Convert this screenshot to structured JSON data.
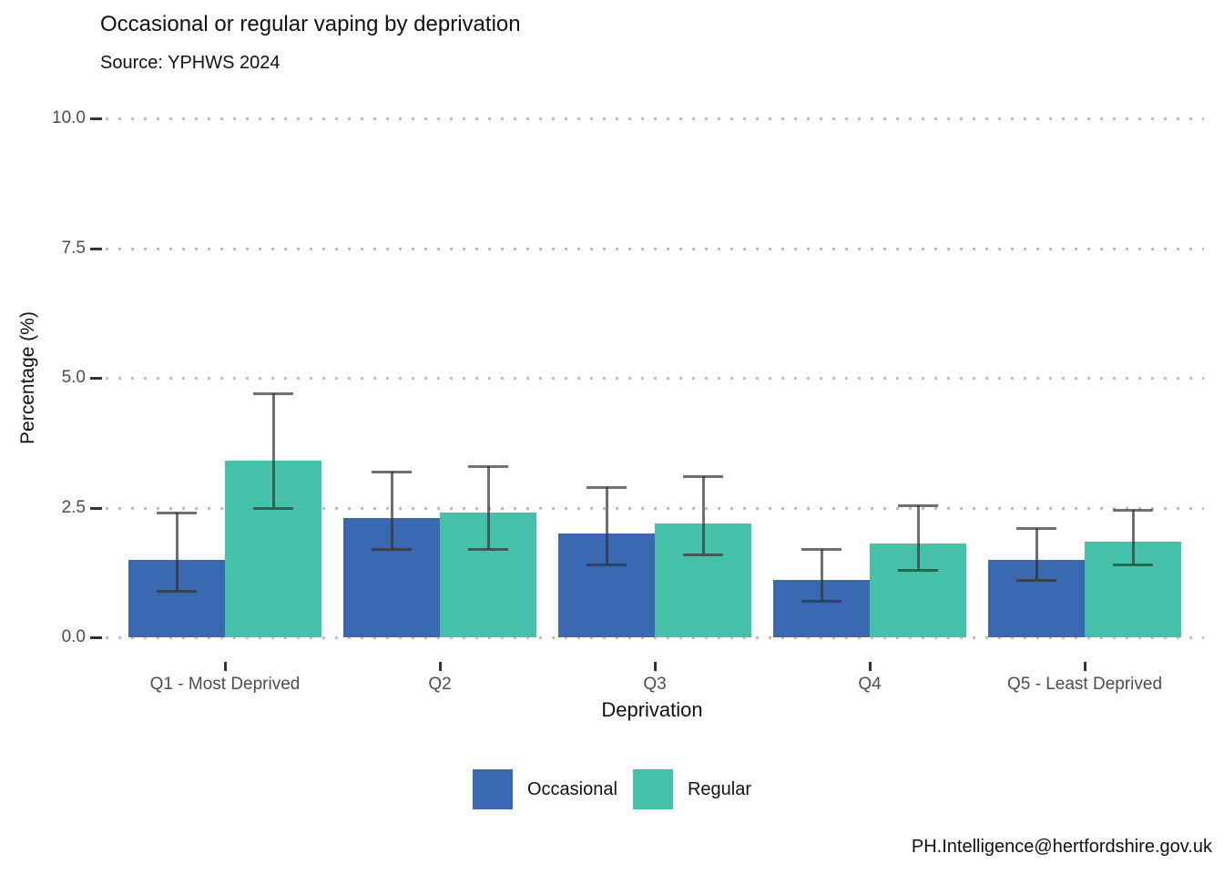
{
  "title": "Occasional or regular vaping by deprivation",
  "subtitle": "Source: YPHWS 2024",
  "footer": "PH.Intelligence@hertfordshire.gov.uk",
  "colors": {
    "occasional": "#3A68B1",
    "regular": "#45C1A9",
    "errorbar": "#333333",
    "gridline": "#BFBFBF",
    "tick_label": "#4D4D4D"
  },
  "legend": {
    "items": [
      {
        "label": "Occasional",
        "color": "#3A68B1"
      },
      {
        "label": "Regular",
        "color": "#45C1A9"
      }
    ]
  },
  "chart_data": {
    "type": "bar",
    "title": "Occasional or regular vaping by deprivation",
    "subtitle": "Source: YPHWS 2024",
    "xlabel": "Deprivation",
    "ylabel": "Percentage (%)",
    "ylim": [
      0,
      10
    ],
    "yticks": [
      0,
      2.5,
      5,
      7.5,
      10
    ],
    "ytick_labels": [
      "0.0",
      "2.5",
      "5.0",
      "7.5",
      "10.0"
    ],
    "grid": "horizontal dotted",
    "legend_position": "bottom",
    "categories": [
      "Q1 - Most Deprived",
      "Q2",
      "Q3",
      "Q4",
      "Q5 - Least Deprived"
    ],
    "series": [
      {
        "name": "Occasional",
        "color": "#3A68B1",
        "values": [
          1.5,
          2.3,
          2.0,
          1.1,
          1.5
        ],
        "error_low": [
          0.9,
          1.7,
          1.4,
          0.7,
          1.1
        ],
        "error_high": [
          2.4,
          3.2,
          2.9,
          1.7,
          2.1
        ]
      },
      {
        "name": "Regular",
        "color": "#45C1A9",
        "values": [
          3.4,
          2.4,
          2.2,
          1.8,
          1.85
        ],
        "error_low": [
          2.5,
          1.7,
          1.6,
          1.3,
          1.4
        ],
        "error_high": [
          4.7,
          3.3,
          3.1,
          2.55,
          2.45
        ]
      }
    ]
  }
}
